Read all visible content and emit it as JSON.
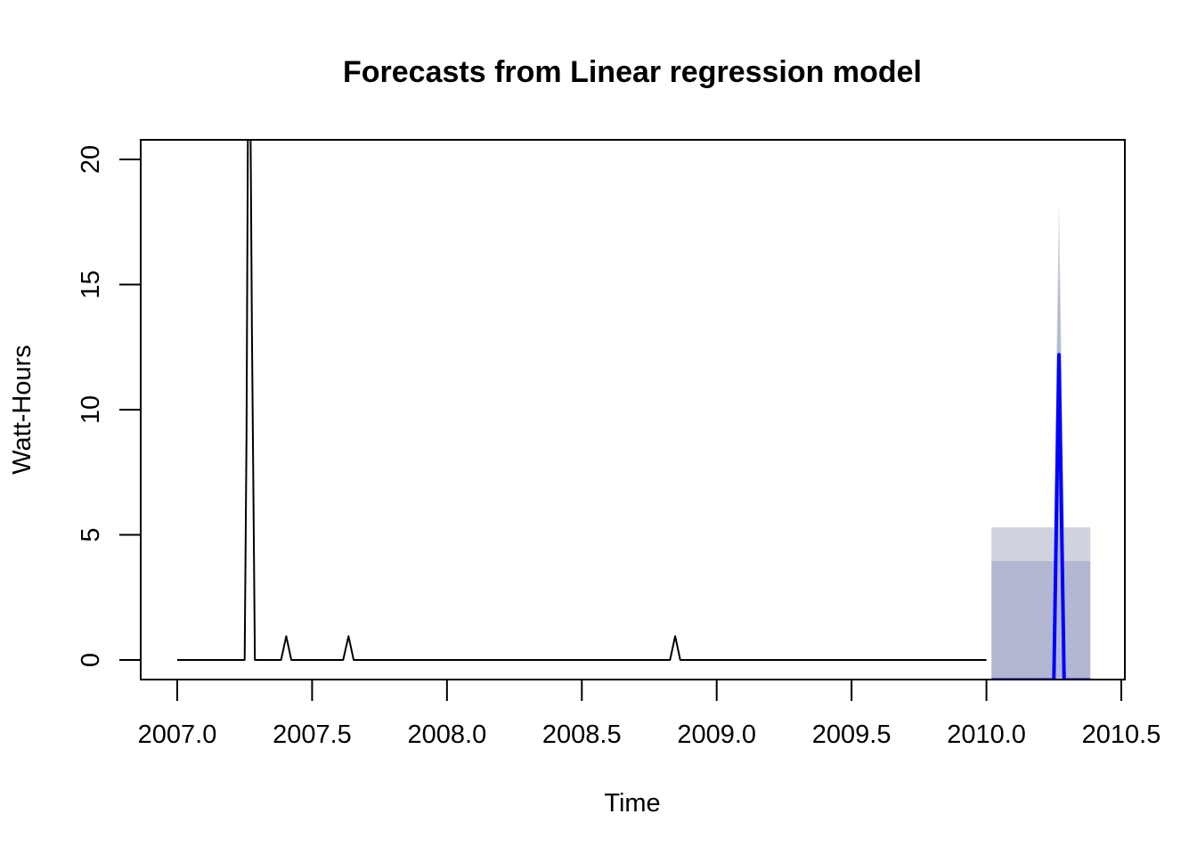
{
  "chart_data": {
    "type": "line",
    "title": "Forecasts from Linear regression model",
    "xlabel": "Time",
    "ylabel": "Watt-Hours",
    "xlim": [
      2007.0,
      2010.5
    ],
    "ylim": [
      0,
      20
    ],
    "x_ticks": [
      2007.0,
      2007.5,
      2008.0,
      2008.5,
      2009.0,
      2009.5,
      2010.0,
      2010.5
    ],
    "x_tick_labels": [
      "2007.0",
      "2007.5",
      "2008.0",
      "2008.5",
      "2009.0",
      "2009.5",
      "2010.0",
      "2010.5"
    ],
    "y_ticks": [
      0,
      5,
      10,
      15,
      20
    ],
    "y_tick_labels": [
      "0",
      "5",
      "10",
      "15",
      "20"
    ],
    "grid": false,
    "legend": "none",
    "series": [
      {
        "role": "observed",
        "color": "#000000",
        "points": [
          [
            2007.0,
            0
          ],
          [
            2007.25,
            0
          ],
          [
            2007.257,
            9
          ],
          [
            2007.263,
            24
          ],
          [
            2007.27,
            24
          ],
          [
            2007.277,
            13
          ],
          [
            2007.283,
            6
          ],
          [
            2007.288,
            0
          ],
          [
            2007.385,
            0
          ],
          [
            2007.404,
            0.95
          ],
          [
            2007.423,
            0
          ],
          [
            2007.615,
            0
          ],
          [
            2007.635,
            0.95
          ],
          [
            2007.654,
            0
          ],
          [
            2008.827,
            0
          ],
          [
            2008.846,
            0.95
          ],
          [
            2008.865,
            0
          ],
          [
            2010.0,
            0
          ]
        ]
      },
      {
        "role": "forecast",
        "color": "#0000ff",
        "points": [
          [
            2010.019,
            -0.8
          ],
          [
            2010.25,
            -0.8
          ],
          [
            2010.269,
            12.2
          ],
          [
            2010.288,
            -0.8
          ],
          [
            2010.385,
            -0.8
          ]
        ]
      }
    ],
    "intervals": [
      {
        "level": "95%",
        "color": "#d0d3dd",
        "lower": [
          [
            2010.019,
            -0.8
          ],
          [
            2010.385,
            -0.8
          ]
        ],
        "upper": [
          [
            2010.019,
            5.3
          ],
          [
            2010.25,
            5.3
          ],
          [
            2010.269,
            18.3
          ],
          [
            2010.288,
            5.3
          ],
          [
            2010.385,
            5.3
          ]
        ]
      },
      {
        "level": "80%",
        "color": "#b2b7d2",
        "lower": [
          [
            2010.019,
            -0.8
          ],
          [
            2010.385,
            -0.8
          ]
        ],
        "upper": [
          [
            2010.019,
            3.95
          ],
          [
            2010.25,
            3.95
          ],
          [
            2010.269,
            16.2
          ],
          [
            2010.288,
            3.95
          ],
          [
            2010.385,
            3.95
          ]
        ]
      }
    ]
  }
}
